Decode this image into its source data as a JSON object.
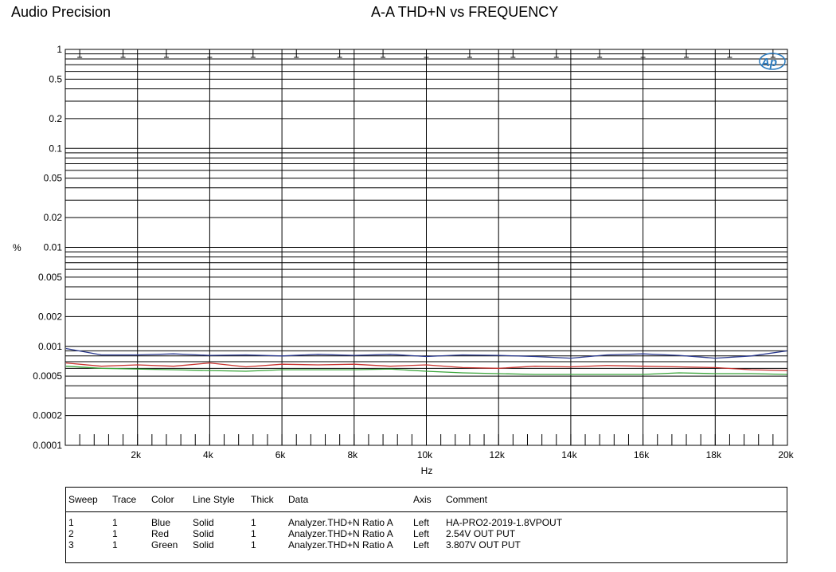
{
  "header": {
    "brand": "Audio Precision",
    "title": "A-A THD+N vs FREQUENCY"
  },
  "colors": {
    "Blue": "#2b3a8f",
    "Red": "#c8322e",
    "Green": "#3aa53a",
    "grid": "#000000"
  },
  "chart_data": {
    "type": "line",
    "title": "A-A THD+N vs FREQUENCY",
    "xlabel": "Hz",
    "ylabel": "%",
    "xlim": [
      0,
      20000
    ],
    "ylim": [
      0.0001,
      1
    ],
    "yscale": "log",
    "grid": true,
    "x_ticks": [
      2000,
      4000,
      6000,
      8000,
      10000,
      12000,
      14000,
      16000,
      18000,
      20000
    ],
    "x_tick_labels": [
      "2k",
      "4k",
      "6k",
      "8k",
      "10k",
      "12k",
      "14k",
      "16k",
      "18k",
      "20k"
    ],
    "y_ticks": [
      1,
      0.5,
      0.2,
      0.1,
      0.05,
      0.02,
      0.01,
      0.005,
      0.002,
      0.001,
      0.0005,
      0.0002,
      0.0001
    ],
    "y_tick_labels": [
      "1",
      "0.5",
      "0.2",
      "0.1",
      "0.05",
      "0.02",
      "0.01",
      "0.005",
      "0.002",
      "0.001",
      "0.0005",
      "0.0002",
      "0.0001"
    ],
    "x": [
      20,
      1000,
      2000,
      3000,
      4000,
      5000,
      6000,
      7000,
      8000,
      9000,
      10000,
      11000,
      12000,
      13000,
      14000,
      15000,
      16000,
      17000,
      18000,
      19000,
      20000
    ],
    "series": [
      {
        "name": "Blue",
        "color": "Blue",
        "values": [
          0.00095,
          0.00082,
          0.00082,
          0.00084,
          0.00081,
          0.00082,
          0.0008,
          0.00083,
          0.00081,
          0.00083,
          0.00079,
          0.00082,
          0.00081,
          0.00079,
          0.00076,
          0.00082,
          0.00084,
          0.00081,
          0.00076,
          0.0008,
          0.0009
        ]
      },
      {
        "name": "Red",
        "color": "Red",
        "values": [
          0.00068,
          0.00063,
          0.00065,
          0.00063,
          0.00068,
          0.00062,
          0.00066,
          0.00065,
          0.00066,
          0.00063,
          0.00065,
          0.00061,
          0.0006,
          0.00063,
          0.00062,
          0.00064,
          0.00063,
          0.00062,
          0.00061,
          0.00058,
          0.00057
        ]
      },
      {
        "name": "Green",
        "color": "Green",
        "values": [
          0.00063,
          0.0006,
          0.00059,
          0.00058,
          0.00057,
          0.00056,
          0.00058,
          0.00058,
          0.00058,
          0.00059,
          0.00056,
          0.00054,
          0.00053,
          0.00052,
          0.00052,
          0.00052,
          0.00052,
          0.00054,
          0.00053,
          0.00053,
          0.00052
        ]
      }
    ]
  },
  "legend": {
    "headers": {
      "sweep": "Sweep",
      "trace": "Trace",
      "color": "Color",
      "line_style": "Line Style",
      "thick": "Thick",
      "data": "Data",
      "axis": "Axis",
      "comment": "Comment"
    },
    "rows": [
      {
        "sweep": "1",
        "trace": "1",
        "color": "Blue",
        "line_style": "Solid",
        "thick": "1",
        "data": "Analyzer.THD+N Ratio A",
        "axis": "Left",
        "comment": "HA-PRO2-2019-1.8VPOUT"
      },
      {
        "sweep": "2",
        "trace": "1",
        "color": "Red",
        "line_style": "Solid",
        "thick": "1",
        "data": "Analyzer.THD+N Ratio A",
        "axis": "Left",
        "comment": "2.54V OUT PUT"
      },
      {
        "sweep": "3",
        "trace": "1",
        "color": "Green",
        "line_style": "Solid",
        "thick": "1",
        "data": "Analyzer.THD+N Ratio A",
        "axis": "Left",
        "comment": "3.807V OUT PUT"
      }
    ]
  }
}
